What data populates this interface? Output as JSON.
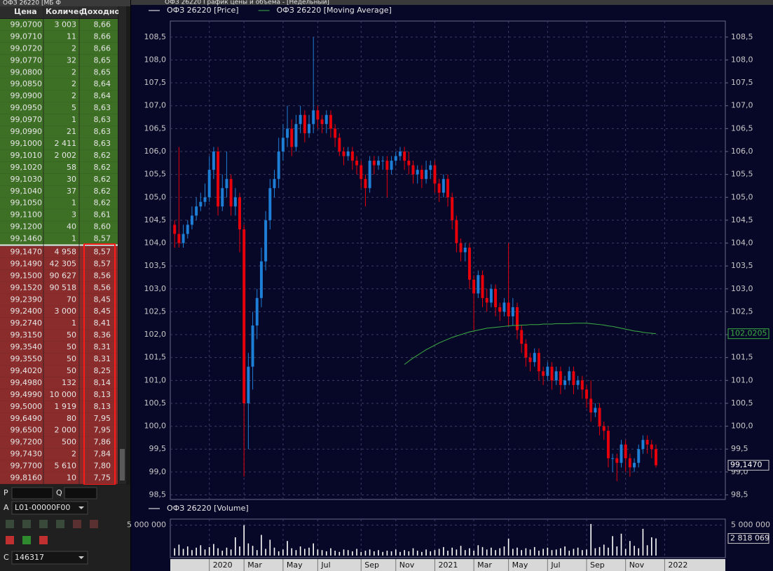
{
  "order_book": {
    "title": "ОФЗ 26220 [МБ Ф",
    "columns": [
      "Цена",
      "Количес",
      "Доходно"
    ],
    "upper_rows": [
      [
        "99,0700",
        "3 003",
        "8,66"
      ],
      [
        "99,0710",
        "11",
        "8,66"
      ],
      [
        "99,0720",
        "2",
        "8,66"
      ],
      [
        "99,0770",
        "32",
        "8,65"
      ],
      [
        "99,0800",
        "2",
        "8,65"
      ],
      [
        "99,0850",
        "2",
        "8,64"
      ],
      [
        "99,0900",
        "2",
        "8,64"
      ],
      [
        "99,0950",
        "5",
        "8,63"
      ],
      [
        "99,0970",
        "1",
        "8,63"
      ],
      [
        "99,0990",
        "21",
        "8,63"
      ],
      [
        "99,1000",
        "2 411",
        "8,63"
      ],
      [
        "99,1010",
        "2 002",
        "8,62"
      ],
      [
        "99,1020",
        "58",
        "8,62"
      ],
      [
        "99,1030",
        "30",
        "8,62"
      ],
      [
        "99,1040",
        "37",
        "8,62"
      ],
      [
        "99,1050",
        "1",
        "8,62"
      ],
      [
        "99,1100",
        "3",
        "8,61"
      ],
      [
        "99,1200",
        "40",
        "8,60"
      ],
      [
        "99,1460",
        "1",
        "8,57"
      ]
    ],
    "lower_rows": [
      [
        "99,1470",
        "4 958",
        "8,57"
      ],
      [
        "99,1490",
        "42 305",
        "8,57"
      ],
      [
        "99,1500",
        "90 627",
        "8,56"
      ],
      [
        "99,1520",
        "90 518",
        "8,56"
      ],
      [
        "99,2390",
        "70",
        "8,45"
      ],
      [
        "99,2400",
        "3 000",
        "8,45"
      ],
      [
        "99,2740",
        "1",
        "8,41"
      ],
      [
        "99,3150",
        "50",
        "8,36"
      ],
      [
        "99,3540",
        "50",
        "8,31"
      ],
      [
        "99,3550",
        "50",
        "8,31"
      ],
      [
        "99,4020",
        "50",
        "8,25"
      ],
      [
        "99,4980",
        "132",
        "8,14"
      ],
      [
        "99,4990",
        "10 000",
        "8,13"
      ],
      [
        "99,5000",
        "1 919",
        "8,13"
      ],
      [
        "99,6490",
        "80",
        "7,95"
      ],
      [
        "99,6500",
        "2 000",
        "7,95"
      ],
      [
        "99,7200",
        "500",
        "7,86"
      ],
      [
        "99,7430",
        "2",
        "7,84"
      ],
      [
        "99,7700",
        "5 610",
        "7,80"
      ],
      [
        "99,8160",
        "10",
        "7,75"
      ]
    ]
  },
  "controls": {
    "p_label": "P",
    "q_label": "Q",
    "a_label": "A",
    "account": "L01-00000F00",
    "c_label": "C",
    "client_code": "146317"
  },
  "chart_data": {
    "type": "candlestick",
    "title": "ОФЗ 26220 График цены и объема - [Недельный]",
    "xlim": [
      -1,
      127
    ],
    "ylim": [
      98.4,
      108.85
    ],
    "grid": true,
    "xticks": [
      {
        "value": 8,
        "label": "2020"
      },
      {
        "value": 16,
        "label": "Mar"
      },
      {
        "value": 25,
        "label": "May"
      },
      {
        "value": 33,
        "label": "Jul"
      },
      {
        "value": 43,
        "label": "Sep"
      },
      {
        "value": 51,
        "label": "Nov"
      },
      {
        "value": 60,
        "label": "2021"
      },
      {
        "value": 69,
        "label": "Mar"
      },
      {
        "value": 77,
        "label": "May"
      },
      {
        "value": 86,
        "label": "Jul"
      },
      {
        "value": 95,
        "label": "Sep"
      },
      {
        "value": 104,
        "label": "Nov"
      },
      {
        "value": 113,
        "label": "2022"
      }
    ],
    "yticks": [
      {
        "value": 98.5,
        "label": "98,5"
      },
      {
        "value": 99,
        "label": "99,0"
      },
      {
        "value": 99.5,
        "label": "99,5"
      },
      {
        "value": 100,
        "label": "100,0"
      },
      {
        "value": 100.5,
        "label": "100,5"
      },
      {
        "value": 101,
        "label": "101,0"
      },
      {
        "value": 101.5,
        "label": "101,5"
      },
      {
        "value": 102,
        "label": "102,0"
      },
      {
        "value": 102.5,
        "label": "102,5"
      },
      {
        "value": 103,
        "label": "103,0"
      },
      {
        "value": 103.5,
        "label": "103,5"
      },
      {
        "value": 104,
        "label": "104,0"
      },
      {
        "value": 104.5,
        "label": "104,5"
      },
      {
        "value": 105,
        "label": "105,0"
      },
      {
        "value": 105.5,
        "label": "105,5"
      },
      {
        "value": 106,
        "label": "106,0"
      },
      {
        "value": 106.5,
        "label": "106,5"
      },
      {
        "value": 107,
        "label": "107,0"
      },
      {
        "value": 107.5,
        "label": "107,5"
      },
      {
        "value": 108,
        "label": "108,0"
      },
      {
        "value": 108.5,
        "label": "108,5"
      }
    ],
    "series": [
      {
        "name": "ОФЗ 26220 [Price]",
        "type": "candlestick",
        "legend_color": "#ffffff",
        "up_color": "#1e7fd6",
        "down_color": "#e8000b",
        "open": [
          104.4,
          104.2,
          104.0,
          104.2,
          104.4,
          104.6,
          104.8,
          104.9,
          105.0,
          105.6,
          106.0,
          104.8,
          105.2,
          105.4,
          104.8,
          105.0,
          104.3,
          100.5,
          101.3,
          102.2,
          102.8,
          103.6,
          104.5,
          105.2,
          105.4,
          106.0,
          106.3,
          106.5,
          106.1,
          106.6,
          106.8,
          106.4,
          106.6,
          106.9,
          106.7,
          106.6,
          106.8,
          106.5,
          106.3,
          106.0,
          105.9,
          106.0,
          105.8,
          105.7,
          105.4,
          105.2,
          105.8,
          105.7,
          105.8,
          105.8,
          105.6,
          105.8,
          105.9,
          106.0,
          105.8,
          105.7,
          105.5,
          105.6,
          105.4,
          105.6,
          105.7,
          105.3,
          105.1,
          105.4,
          105.0,
          104.5,
          104.0,
          103.8,
          103.9,
          103.2,
          102.9,
          103.3,
          102.8,
          102.7,
          103.0,
          102.6,
          102.5,
          102.7,
          102.4,
          102.6,
          102.1,
          101.8,
          101.5,
          101.4,
          101.6,
          101.2,
          101.1,
          101.3,
          101.0,
          101.2,
          100.9,
          101.0,
          101.2,
          100.9,
          101.0,
          100.8,
          100.6,
          100.3,
          100.4,
          100.0,
          99.9,
          99.3,
          99.3,
          99.2,
          99.6,
          99.3,
          99.1,
          99.2,
          99.5,
          99.7,
          99.6,
          99.5
        ],
        "high": [
          104.5,
          106.1,
          104.4,
          104.5,
          104.8,
          105.0,
          105.1,
          105.3,
          105.9,
          106.1,
          106.1,
          105.5,
          106.0,
          105.5,
          105.2,
          105.1,
          104.4,
          101.6,
          102.5,
          103.0,
          103.9,
          104.7,
          105.4,
          105.6,
          106.3,
          106.6,
          107.0,
          106.7,
          106.8,
          107.0,
          106.9,
          106.8,
          108.5,
          107.0,
          106.8,
          106.9,
          106.9,
          106.6,
          106.4,
          106.1,
          106.1,
          106.1,
          105.9,
          105.8,
          105.5,
          105.9,
          105.9,
          105.9,
          105.9,
          105.9,
          105.9,
          106.0,
          106.1,
          106.1,
          106.0,
          105.8,
          105.7,
          105.7,
          105.8,
          105.8,
          105.8,
          105.4,
          105.5,
          105.5,
          105.1,
          104.6,
          104.1,
          104.0,
          104.0,
          103.3,
          103.4,
          103.4,
          103.0,
          103.1,
          103.1,
          102.7,
          102.8,
          104.0,
          102.8,
          102.7,
          102.2,
          101.9,
          101.6,
          101.7,
          101.7,
          101.3,
          101.4,
          101.4,
          101.3,
          101.3,
          101.1,
          101.3,
          101.3,
          101.1,
          101.1,
          100.9,
          101.0,
          100.5,
          100.5,
          100.1,
          100.0,
          99.4,
          99.4,
          99.7,
          99.7,
          99.4,
          99.3,
          99.6,
          99.8,
          99.8,
          99.7,
          99.6
        ],
        "low": [
          103.9,
          103.9,
          103.9,
          104.1,
          104.3,
          104.5,
          104.7,
          104.8,
          104.9,
          105.4,
          104.6,
          104.7,
          105.0,
          104.6,
          104.6,
          103.8,
          98.9,
          99.5,
          100.8,
          101.9,
          102.6,
          103.4,
          104.3,
          105.0,
          105.2,
          105.8,
          106.1,
          105.9,
          106.0,
          106.4,
          106.2,
          106.3,
          106.4,
          106.5,
          106.4,
          106.4,
          106.3,
          106.1,
          105.9,
          105.7,
          105.8,
          105.6,
          105.5,
          105.2,
          104.8,
          105.1,
          105.5,
          105.6,
          105.6,
          105.0,
          105.5,
          105.7,
          105.8,
          105.6,
          105.5,
          105.3,
          105.3,
          105.2,
          105.3,
          105.4,
          105.1,
          104.9,
          105.0,
          104.8,
          104.3,
          103.8,
          103.6,
          103.6,
          103.0,
          102.1,
          102.8,
          102.6,
          102.5,
          102.6,
          102.4,
          102.3,
          102.4,
          102.2,
          102.2,
          101.9,
          101.6,
          101.3,
          101.2,
          101.3,
          101.0,
          100.9,
          101.0,
          100.8,
          100.9,
          100.7,
          100.8,
          100.9,
          100.7,
          100.8,
          100.6,
          100.4,
          100.1,
          100.2,
          99.8,
          99.7,
          99.1,
          99.0,
          98.8,
          99.1,
          99.0,
          98.9,
          99.0,
          99.1,
          99.4,
          99.4,
          99.3,
          99.1
        ],
        "close": [
          104.2,
          104.0,
          104.2,
          104.4,
          104.6,
          104.8,
          104.9,
          105.0,
          105.6,
          106.0,
          104.8,
          105.2,
          105.4,
          104.8,
          105.0,
          104.3,
          100.5,
          101.3,
          102.2,
          102.8,
          103.6,
          104.5,
          105.2,
          105.4,
          106.0,
          106.3,
          106.5,
          106.1,
          106.6,
          106.8,
          106.4,
          106.6,
          106.9,
          106.7,
          106.6,
          106.8,
          106.5,
          106.3,
          106.0,
          105.9,
          106.0,
          105.8,
          105.7,
          105.4,
          105.2,
          105.8,
          105.7,
          105.8,
          105.8,
          105.6,
          105.8,
          105.9,
          106.0,
          105.8,
          105.7,
          105.5,
          105.6,
          105.4,
          105.6,
          105.7,
          105.3,
          105.1,
          105.4,
          105.0,
          104.5,
          104.0,
          103.8,
          103.9,
          103.2,
          102.9,
          103.3,
          102.8,
          102.7,
          103.0,
          102.6,
          102.5,
          102.7,
          102.4,
          102.6,
          102.1,
          101.8,
          101.5,
          101.4,
          101.6,
          101.2,
          101.1,
          101.3,
          101.0,
          101.2,
          100.9,
          101.0,
          101.2,
          100.9,
          101.0,
          100.8,
          100.6,
          100.3,
          100.4,
          100.0,
          99.9,
          99.3,
          99.3,
          99.2,
          99.6,
          99.3,
          99.1,
          99.2,
          99.5,
          99.7,
          99.6,
          99.5,
          99.147
        ],
        "last_value_label": "99,1470"
      },
      {
        "name": "ОФЗ 26220 [Moving Average]",
        "type": "line",
        "color": "#3cb043",
        "values": [
          null,
          null,
          null,
          null,
          null,
          null,
          null,
          null,
          null,
          null,
          null,
          null,
          null,
          null,
          null,
          null,
          null,
          null,
          null,
          null,
          null,
          null,
          null,
          null,
          null,
          null,
          null,
          null,
          null,
          null,
          null,
          null,
          null,
          null,
          null,
          null,
          null,
          null,
          null,
          null,
          null,
          null,
          null,
          null,
          null,
          null,
          null,
          null,
          null,
          null,
          null,
          null,
          null,
          101.35,
          101.42,
          101.49,
          101.55,
          101.61,
          101.67,
          101.72,
          101.77,
          101.82,
          101.86,
          101.9,
          101.94,
          101.97,
          102.0,
          102.03,
          102.06,
          102.08,
          102.1,
          102.12,
          102.14,
          102.15,
          102.16,
          102.17,
          102.18,
          102.19,
          102.2,
          102.2,
          102.21,
          102.21,
          102.22,
          102.22,
          102.22,
          102.23,
          102.23,
          102.23,
          102.24,
          102.24,
          102.24,
          102.24,
          102.25,
          102.25,
          102.25,
          102.25,
          102.24,
          102.23,
          102.22,
          102.21,
          102.19,
          102.18,
          102.16,
          102.14,
          102.12,
          102.1,
          102.08,
          102.07,
          102.05,
          102.04,
          102.03,
          102.0205
        ],
        "last_value_label": "102,0205"
      }
    ],
    "volume": {
      "name": "ОФЗ 26220 [Volume]",
      "color": "#ffffff",
      "ylim": [
        0,
        6000000
      ],
      "yticks": [
        {
          "value": 5000000,
          "label": "5 000 000"
        }
      ],
      "values": [
        1200000,
        1800000,
        1100000,
        1500000,
        900000,
        1300000,
        1700000,
        1000000,
        1400000,
        1900000,
        1200000,
        800000,
        1300000,
        1000000,
        3000000,
        1500000,
        5000000,
        2000000,
        1600000,
        900000,
        3400000,
        1100000,
        2600000,
        1300000,
        700000,
        1000000,
        2400000,
        1200000,
        900000,
        1500000,
        1100000,
        1300000,
        2000000,
        1000000,
        900000,
        700000,
        1200000,
        800000,
        600000,
        1000000,
        900000,
        700000,
        1100000,
        600000,
        800000,
        1000000,
        700000,
        900000,
        600000,
        800000,
        700000,
        1000000,
        600000,
        900000,
        700000,
        1200000,
        800000,
        600000,
        1000000,
        700000,
        900000,
        1100000,
        1400000,
        800000,
        1300000,
        1000000,
        1600000,
        900000,
        1200000,
        800000,
        1700000,
        1400000,
        1000000,
        1300000,
        900000,
        1200000,
        1500000,
        2800000,
        1100000,
        1300000,
        900000,
        1200000,
        1000000,
        1400000,
        800000,
        1100000,
        1300000,
        900000,
        1000000,
        1200000,
        1500000,
        800000,
        1100000,
        1300000,
        900000,
        1000000,
        5200000,
        1200000,
        1400000,
        1800000,
        1300000,
        3200000,
        1500000,
        3600000,
        1100000,
        2400000,
        1600000,
        1200000,
        4400000,
        1700000,
        3000000,
        2818069
      ],
      "last_value_label": "2 818 069"
    }
  }
}
